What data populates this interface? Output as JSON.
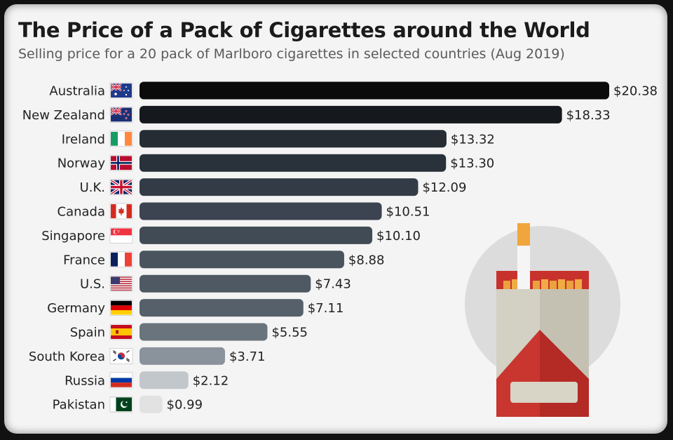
{
  "chart_data": {
    "type": "bar",
    "orientation": "horizontal",
    "title": "The Price of a Pack of Cigarettes around the World",
    "subtitle": "Selling price for a 20 pack of Marlboro cigarettes in selected countries (Aug 2019)",
    "categories": [
      "Australia",
      "New Zealand",
      "Ireland",
      "Norway",
      "U.K.",
      "Canada",
      "Singapore",
      "France",
      "U.S.",
      "Germany",
      "Spain",
      "South Korea",
      "Russia",
      "Pakistan"
    ],
    "values": [
      20.38,
      18.33,
      13.32,
      13.3,
      12.09,
      10.51,
      10.1,
      8.88,
      7.43,
      7.11,
      5.55,
      3.71,
      2.12,
      0.99
    ],
    "value_labels": [
      "$20.38",
      "$18.33",
      "$13.32",
      "$13.30",
      "$12.09",
      "$10.51",
      "$10.10",
      "$8.88",
      "$7.43",
      "$7.11",
      "$5.55",
      "$3.71",
      "$2.12",
      "$0.99"
    ],
    "bar_colors": [
      "#0b0b0b",
      "#15181c",
      "#252c34",
      "#29313a",
      "#333c46",
      "#3b4450",
      "#414b56",
      "#4a545e",
      "#4e5963",
      "#55606a",
      "#6a747d",
      "#8a939b",
      "#c2c7cb",
      "#e2e2e2"
    ],
    "flags": [
      "flag-australia-icon",
      "flag-new-zealand-icon",
      "flag-ireland-icon",
      "flag-norway-icon",
      "flag-uk-icon",
      "flag-canada-icon",
      "flag-singapore-icon",
      "flag-france-icon",
      "flag-us-icon",
      "flag-germany-icon",
      "flag-spain-icon",
      "flag-south-korea-icon",
      "flag-russia-icon",
      "flag-pakistan-icon"
    ],
    "xlim": [
      0,
      20.38
    ],
    "grid": false,
    "legend": "none"
  },
  "illustration": "cigarette-pack-icon"
}
